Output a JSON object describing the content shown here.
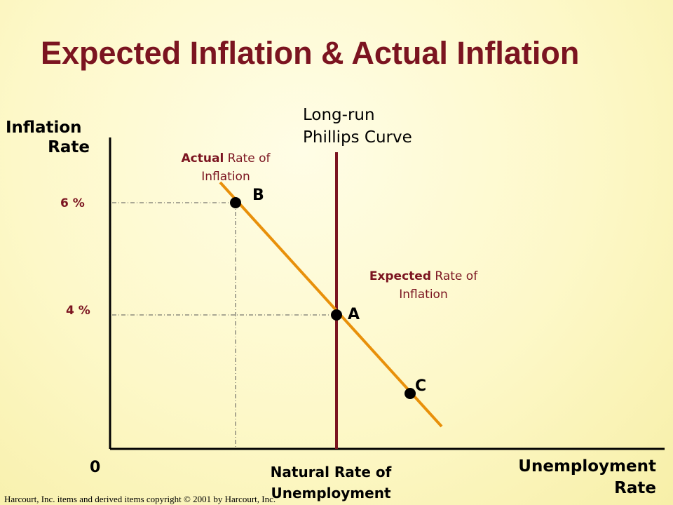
{
  "title": "Expected Inflation & Actual Inflation",
  "y_axis": {
    "line1": "Inflation",
    "line2": "Rate"
  },
  "x_axis": {
    "line1": "Unemployment",
    "line2": "Rate"
  },
  "origin_label": "0",
  "lrpc_label": {
    "line1": "Long-run",
    "line2": "Phillips Curve"
  },
  "actual_label": {
    "bold": "Actual",
    "rest": " Rate of",
    "line2": "Inflation"
  },
  "expected_label": {
    "bold": "Expected",
    "rest": " Rate of",
    "line2": "Inflation"
  },
  "ticks": {
    "high": "6 %",
    "low": "4 %"
  },
  "points": {
    "a": "A",
    "b": "B",
    "c": "C"
  },
  "natural_rate": {
    "line1": "Natural Rate of",
    "line2": "Unemployment"
  },
  "copyright": "Harcourt, Inc. items and derived items copyright © 2001 by Harcourt, Inc.",
  "colors": {
    "title": "#7b1420",
    "lrpc": "#7b1420",
    "sric": "#e8900a",
    "axis": "#000000"
  }
}
